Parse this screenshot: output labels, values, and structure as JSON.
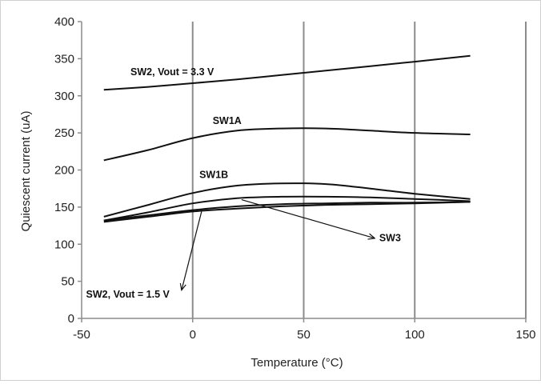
{
  "chart_data": {
    "type": "line",
    "title": "",
    "xlabel": "Temperature (°C)",
    "ylabel": "Quiescent current (uA)",
    "xlim": [
      -50,
      150
    ],
    "ylim": [
      0,
      400
    ],
    "x_ticks": [
      "-50",
      "0",
      "50",
      "100",
      "150"
    ],
    "y_ticks": [
      "0",
      "50",
      "100",
      "150",
      "200",
      "250",
      "300",
      "350",
      "400"
    ],
    "grid": "vertical gridlines only",
    "legend": "none (series labelled inline)",
    "series": [
      {
        "name": "SW2, Vout = 3.3 V",
        "x": [
          -40,
          -20,
          0,
          20,
          40,
          60,
          80,
          100,
          125
        ],
        "y": [
          308,
          312,
          317,
          322,
          328,
          334,
          340,
          346,
          354
        ]
      },
      {
        "name": "SW1A",
        "x": [
          -40,
          -20,
          0,
          20,
          40,
          60,
          80,
          100,
          125
        ],
        "y": [
          213,
          227,
          243,
          253,
          256,
          256,
          253,
          250,
          248
        ]
      },
      {
        "name": "SW1B",
        "x": [
          -40,
          -20,
          0,
          20,
          40,
          60,
          80,
          100,
          125
        ],
        "y": [
          137,
          153,
          169,
          179,
          182,
          181,
          175,
          168,
          161
        ]
      },
      {
        "name": "",
        "x": [
          -40,
          -20,
          0,
          20,
          40,
          60,
          80,
          100,
          125
        ],
        "y": [
          132,
          143,
          155,
          162,
          164,
          164,
          163,
          161,
          158
        ]
      },
      {
        "name": "",
        "x": [
          -40,
          -20,
          0,
          20,
          40,
          60,
          80,
          100,
          125
        ],
        "y": [
          130,
          137,
          144,
          148,
          151,
          153,
          154,
          155,
          157
        ]
      },
      {
        "name": "",
        "x": [
          -40,
          -20,
          0,
          20,
          40,
          60,
          80,
          100,
          125
        ],
        "y": [
          132,
          139,
          146,
          151,
          154,
          155,
          156,
          156,
          157
        ]
      }
    ],
    "annotations": [
      {
        "text": "SW2, Vout = 3.3 V",
        "x": -28,
        "y": 328
      },
      {
        "text": "SW1A",
        "x": 9,
        "y": 262
      },
      {
        "text": "SW1B",
        "x": 3,
        "y": 189
      },
      {
        "text": "SW3",
        "x": 84,
        "y": 104
      },
      {
        "text": "SW2, Vout = 1.5 V",
        "x": -48,
        "y": 28
      }
    ],
    "arrows": [
      {
        "label": "SW3",
        "from": [
          22,
          160
        ],
        "to": [
          82,
          108
        ]
      },
      {
        "label": "SW2, Vout = 1.5 V",
        "from": [
          4,
          144
        ],
        "to": [
          -5,
          38
        ]
      }
    ]
  }
}
